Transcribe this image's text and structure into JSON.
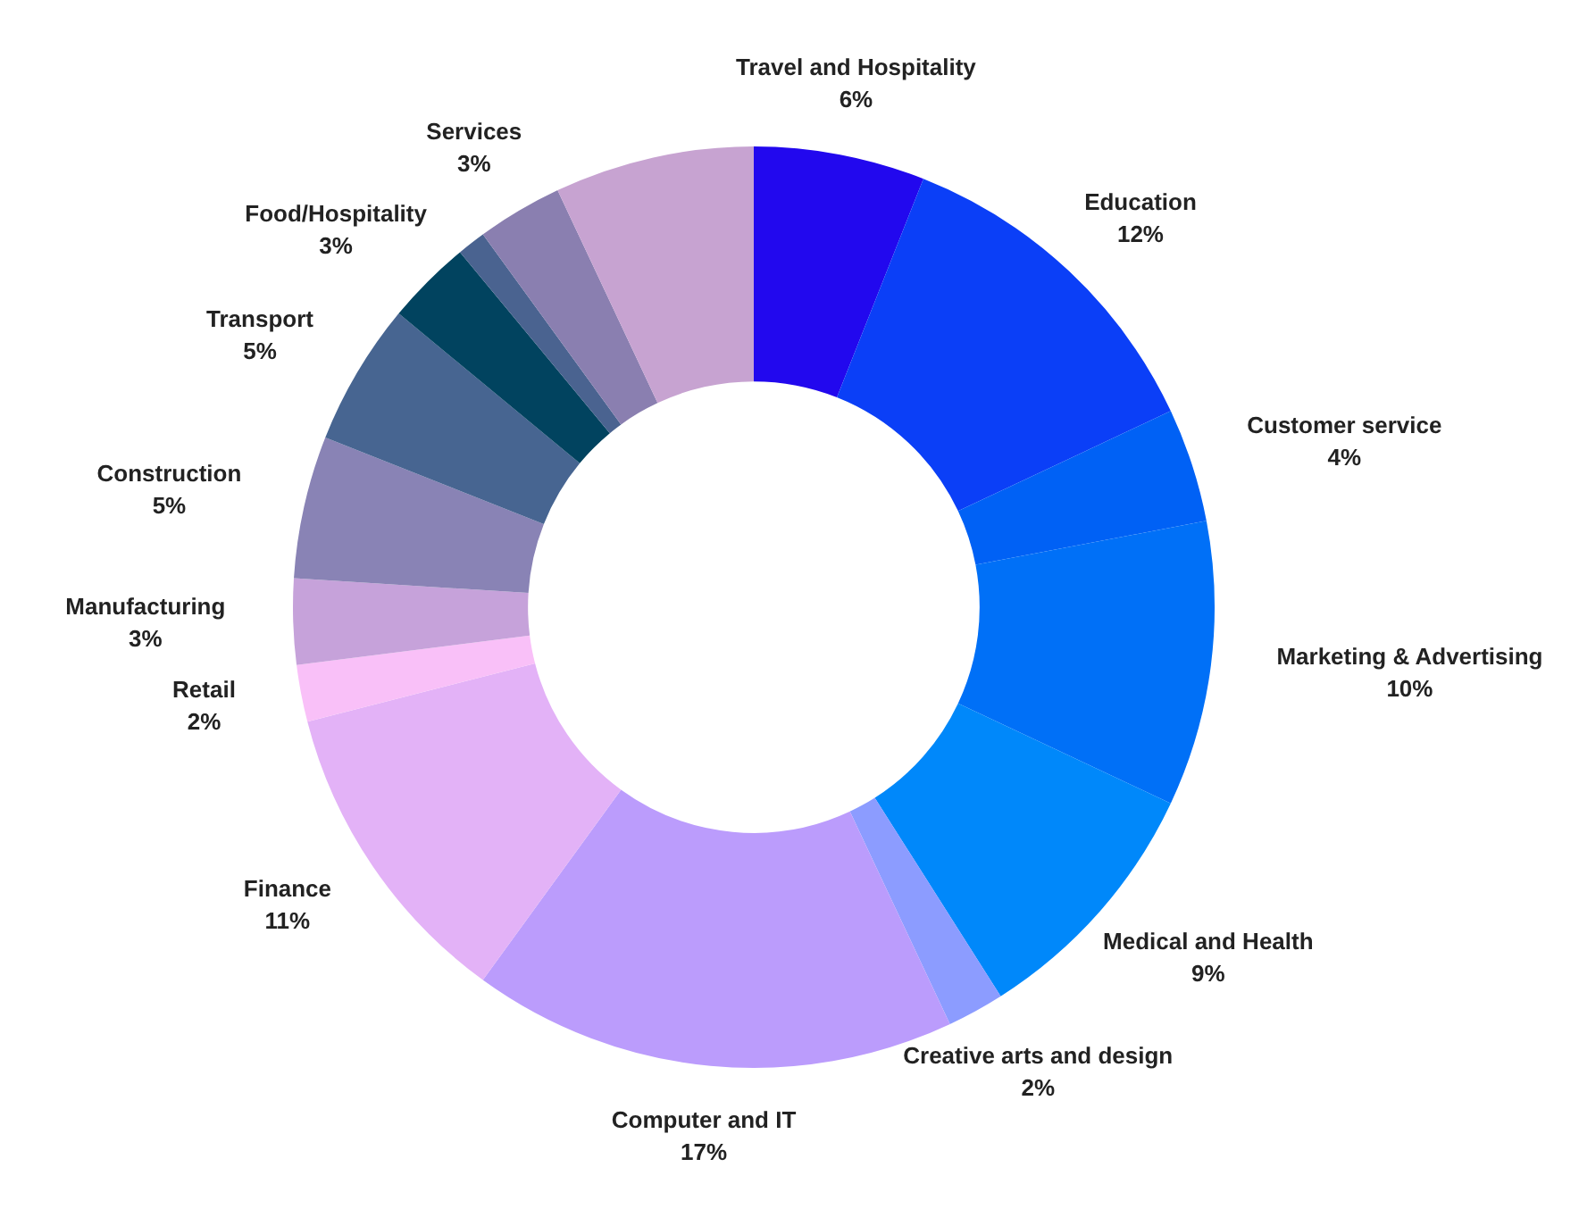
{
  "chart_data": {
    "type": "donut",
    "categories": [
      "Travel and Hospitality",
      "Education",
      "Customer service",
      "Marketing & Advertising",
      "Medical and Health",
      "Creative arts and design",
      "Computer and IT",
      "Finance",
      "Retail",
      "Manufacturing",
      "Construction",
      "Transport",
      "Food/Hospitality",
      null,
      "Services",
      null
    ],
    "values": [
      6,
      12,
      4,
      10,
      9,
      2,
      17,
      11,
      2,
      3,
      5,
      5,
      3,
      1,
      3,
      7
    ],
    "value_labels": [
      "6%",
      "12%",
      "4%",
      "10%",
      "9%",
      "2%",
      "17%",
      "11%",
      "2%",
      "3%",
      "5%",
      "5%",
      "3%",
      null,
      "3%",
      null
    ],
    "colors": [
      "#2208ee",
      "#0b3ff7",
      "#0061f5",
      "#0070f7",
      "#0088fa",
      "#8c9cff",
      "#bb9cfc",
      "#e3b2f7",
      "#f9c0f8",
      "#c6a2da",
      "#8983b5",
      "#476591",
      "#01435f",
      "#4a6390",
      "#8a7fb0",
      "#c7a3d1"
    ],
    "legend": false
  }
}
